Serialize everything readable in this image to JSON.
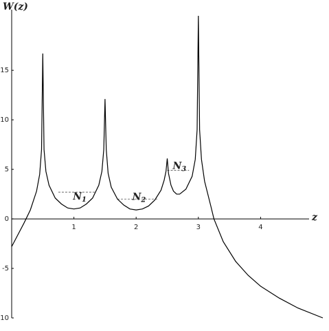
{
  "chart_data": {
    "type": "line",
    "ylabel": "W(z)",
    "xlabel": "z",
    "xlim": [
      0,
      5
    ],
    "ylim": [
      -10,
      20.5
    ],
    "xticks": [
      1,
      2,
      3,
      4
    ],
    "yticks": [
      -10,
      -5,
      0,
      5,
      10,
      15
    ],
    "series": [
      {
        "color": "#000000",
        "x": [
          0,
          0.1,
          0.2,
          0.3,
          0.4,
          0.45,
          0.48,
          0.5,
          0.52,
          0.55,
          0.6,
          0.7,
          0.8,
          0.9,
          1.0,
          1.1,
          1.2,
          1.3,
          1.4,
          1.45,
          1.48,
          1.5,
          1.52,
          1.55,
          1.6,
          1.7,
          1.8,
          1.9,
          2.0,
          2.1,
          2.2,
          2.3,
          2.4,
          2.45,
          2.48,
          2.5,
          2.52,
          2.56,
          2.6,
          2.65,
          2.7,
          2.8,
          2.9,
          2.95,
          2.98,
          3.0,
          3.02,
          3.05,
          3.1,
          3.2,
          3.25,
          3.4,
          3.6,
          3.8,
          4.0,
          4.3,
          4.6,
          5.0
        ],
        "values": [
          -2.8,
          -1.6,
          -0.4,
          0.9,
          2.8,
          4.5,
          7,
          16.7,
          7,
          4.8,
          3.4,
          2.1,
          1.5,
          1.1,
          1.0,
          1.1,
          1.5,
          2.1,
          3.4,
          4.8,
          7,
          12.1,
          7,
          4.6,
          3.2,
          2.0,
          1.4,
          1.0,
          0.9,
          1.0,
          1.3,
          1.9,
          2.9,
          3.9,
          4.8,
          6.1,
          4.6,
          3.4,
          2.8,
          2.5,
          2.5,
          3.0,
          4.3,
          6,
          9,
          20.5,
          9,
          6,
          3.8,
          1.3,
          0,
          -2.3,
          -4.3,
          -5.7,
          -6.8,
          -8.0,
          -9.0,
          -10.0
        ]
      }
    ],
    "levels": [
      {
        "label": "N",
        "sub": "1",
        "y": 2.7,
        "x": [
          0.75,
          1.35
        ]
      },
      {
        "label": "N",
        "sub": "2",
        "y": 2.0,
        "x": [
          1.7,
          2.35
        ]
      },
      {
        "label": "N",
        "sub": "3",
        "y": 4.9,
        "x": [
          2.5,
          2.85
        ]
      }
    ]
  }
}
